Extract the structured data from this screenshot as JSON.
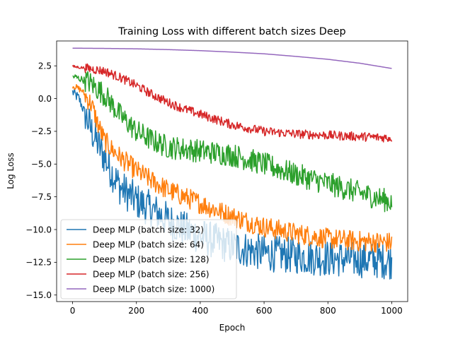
{
  "chart_data": {
    "type": "line",
    "title": "Training Loss with different batch sizes Deep",
    "xlabel": "Epoch",
    "ylabel": "Log Loss",
    "xlim": [
      -50,
      1050
    ],
    "ylim": [
      -15.5,
      4.4
    ],
    "x_ticks": [
      0,
      200,
      400,
      600,
      800,
      1000
    ],
    "y_ticks": [
      2.5,
      0.0,
      -2.5,
      -5.0,
      -7.5,
      -10.0,
      -12.5,
      -15.0
    ],
    "x_tick_labels": [
      "0",
      "200",
      "400",
      "600",
      "800",
      "1000"
    ],
    "y_tick_labels": [
      "2.5",
      "0.0",
      "−2.5",
      "−5.0",
      "−7.5",
      "−10.0",
      "−12.5",
      "−15.0"
    ],
    "grid": false,
    "legend_position": "lower-left",
    "series": [
      {
        "name": "Deep MLP (batch size: 32)",
        "color": "#1f77b4",
        "x": [
          0,
          20,
          40,
          60,
          80,
          100,
          120,
          150,
          200,
          250,
          300,
          350,
          400,
          500,
          600,
          700,
          800,
          900,
          1000
        ],
        "y": [
          0.5,
          0.0,
          -1.2,
          -2.5,
          -3.5,
          -4.5,
          -5.5,
          -6.8,
          -7.8,
          -8.5,
          -9.3,
          -10.0,
          -10.5,
          -11.3,
          -11.8,
          -12.0,
          -12.2,
          -12.3,
          -12.4
        ],
        "noise": 1.4
      },
      {
        "name": "Deep MLP (batch size: 64)",
        "color": "#ff7f0e",
        "x": [
          0,
          30,
          60,
          80,
          100,
          120,
          150,
          200,
          250,
          300,
          350,
          400,
          500,
          600,
          700,
          800,
          900,
          1000
        ],
        "y": [
          1.0,
          0.6,
          -0.5,
          -2.0,
          -3.2,
          -3.8,
          -4.5,
          -5.5,
          -6.3,
          -7.0,
          -7.5,
          -8.0,
          -9.0,
          -9.8,
          -10.3,
          -10.7,
          -10.9,
          -11.0
        ],
        "noise": 0.8
      },
      {
        "name": "Deep MLP (batch size: 128)",
        "color": "#2ca02c",
        "x": [
          0,
          50,
          100,
          150,
          200,
          250,
          300,
          400,
          500,
          600,
          700,
          800,
          900,
          1000
        ],
        "y": [
          1.7,
          1.3,
          0.3,
          -1.3,
          -2.5,
          -3.2,
          -3.7,
          -4.0,
          -4.3,
          -5.0,
          -5.8,
          -6.5,
          -7.2,
          -7.9
        ],
        "noise": 0.9
      },
      {
        "name": "Deep MLP (batch size: 256)",
        "color": "#d62728",
        "x": [
          0,
          50,
          100,
          150,
          200,
          250,
          300,
          350,
          400,
          500,
          600,
          700,
          800,
          900,
          1000
        ],
        "y": [
          2.45,
          2.3,
          2.1,
          1.6,
          1.0,
          0.3,
          -0.3,
          -0.8,
          -1.2,
          -2.0,
          -2.5,
          -2.7,
          -2.8,
          -2.9,
          -3.0
        ],
        "noise": 0.35
      },
      {
        "name": "Deep MLP (batch size: 1000)",
        "color": "#9467bd",
        "x": [
          0,
          100,
          200,
          300,
          400,
          500,
          600,
          700,
          800,
          900,
          1000
        ],
        "y": [
          3.85,
          3.83,
          3.8,
          3.74,
          3.66,
          3.55,
          3.42,
          3.22,
          3.0,
          2.7,
          2.3
        ],
        "noise": 0
      }
    ]
  }
}
